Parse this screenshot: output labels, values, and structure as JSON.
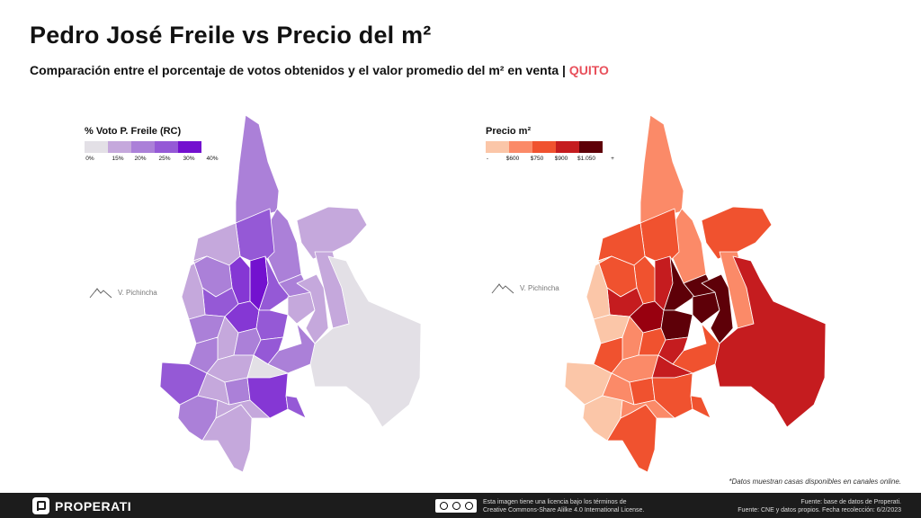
{
  "title": "Pedro José Freile vs Precio del m²",
  "subtitle": {
    "text": "Comparación entre el porcentaje de votos obtenidos y el valor promedio del m² en venta |",
    "city": "QUITO",
    "city_color": "#e8505b"
  },
  "left_map": {
    "legend_title": "% Voto P. Freile (RC)",
    "legend_colors": [
      "#e3e0e6",
      "#c5a8dc",
      "#ab80d8",
      "#9559d6",
      "#8537d4",
      "#7311cf"
    ],
    "legend_ticks": [
      "0%",
      "15%",
      "20%",
      "25%",
      "30%",
      "40%"
    ],
    "landmark": "V. Pichincha"
  },
  "right_map": {
    "legend_title": "Precio m²",
    "legend_colors": [
      "#fbc6a8",
      "#fb8a68",
      "#f0522f",
      "#c51c1f",
      "#98000f",
      "#5e0008"
    ],
    "legend_ticks": [
      "-",
      "$600",
      "$750",
      "$900",
      "$1.050",
      "+"
    ],
    "landmark": "V. Pichincha"
  },
  "note": "*Datos muestran casas disponibles en canales online.",
  "footer": {
    "brand": "PROPERATI",
    "license_line1": "Esta imagen tiene una licencia bajo los términos de",
    "license_line2": "Creative Commons-Share Alilke 4.0 International License.",
    "source_line1": "Fuente: base de datos de Properati.",
    "source_line2": "Fuente: CNE y datos propios. Fecha recolección: 6/2/2023"
  }
}
